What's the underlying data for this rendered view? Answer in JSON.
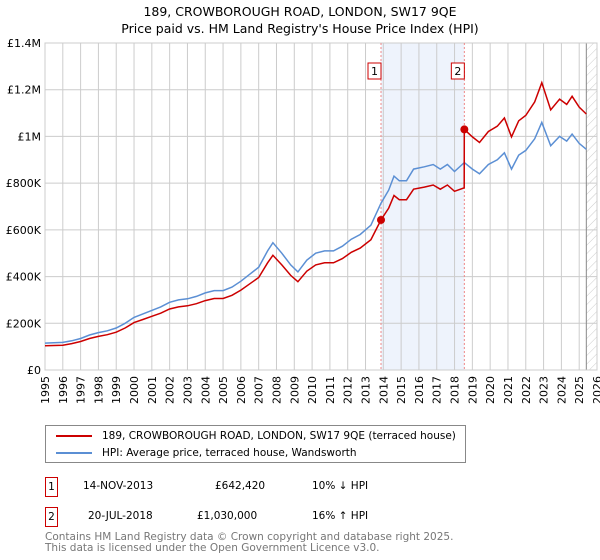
{
  "title": "189, CROWBOROUGH ROAD, LONDON, SW17 9QE",
  "subtitle": "Price paid vs. HM Land Registry's House Price Index (HPI)",
  "chart_data": {
    "type": "line",
    "xlim": [
      1995,
      2026
    ],
    "ylim": [
      0,
      1400000
    ],
    "x_ticks": [
      "1995",
      "1996",
      "1997",
      "1998",
      "1999",
      "2000",
      "2001",
      "2002",
      "2003",
      "2004",
      "2005",
      "2006",
      "2007",
      "2008",
      "2009",
      "2010",
      "2011",
      "2012",
      "2013",
      "2014",
      "2015",
      "2016",
      "2017",
      "2018",
      "2019",
      "2020",
      "2021",
      "2022",
      "2023",
      "2024",
      "2025",
      "2026"
    ],
    "y_ticks": [
      {
        "v": 0,
        "label": "£0"
      },
      {
        "v": 200000,
        "label": "£200K"
      },
      {
        "v": 400000,
        "label": "£400K"
      },
      {
        "v": 600000,
        "label": "£600K"
      },
      {
        "v": 800000,
        "label": "£800K"
      },
      {
        "v": 1000000,
        "label": "£1M"
      },
      {
        "v": 1200000,
        "label": "£1.2M"
      },
      {
        "v": 1400000,
        "label": "£1.4M"
      }
    ],
    "grid": true,
    "shaded_range": [
      2013.87,
      2018.55
    ],
    "forecast_from": 2025.4,
    "series": [
      {
        "name": "189, CROWBOROUGH ROAD, LONDON, SW17 9QE (terraced house)",
        "color": "#cc0000",
        "x": [
          1995,
          1995.5,
          1996,
          1996.5,
          1997,
          1997.5,
          1998,
          1998.5,
          1999,
          1999.5,
          2000,
          2000.5,
          2001,
          2001.5,
          2002,
          2002.5,
          2003,
          2003.5,
          2004,
          2004.5,
          2005,
          2005.5,
          2006,
          2006.5,
          2007,
          2007.5,
          2007.8,
          2008.3,
          2008.8,
          2009.2,
          2009.7,
          2010.2,
          2010.7,
          2011.2,
          2011.7,
          2012.2,
          2012.7,
          2013.3,
          2013.87,
          2014.3,
          2014.6,
          2014.9,
          2015.3,
          2015.7,
          2016.3,
          2016.8,
          2017.2,
          2017.6,
          2018.0,
          2018.54,
          2018.55,
          2019.0,
          2019.4,
          2019.9,
          2020.4,
          2020.8,
          2021.2,
          2021.6,
          2022.0,
          2022.5,
          2022.9,
          2023.4,
          2023.9,
          2024.3,
          2024.6,
          2025.0,
          2025.4
        ],
        "y": [
          104000,
          105000,
          106000,
          113000,
          122000,
          135000,
          144000,
          151000,
          162000,
          180000,
          203000,
          216000,
          230000,
          243000,
          261000,
          270000,
          275000,
          284000,
          297000,
          306000,
          306000,
          320000,
          342000,
          369000,
          396000,
          459000,
          491000,
          450000,
          405000,
          378000,
          423000,
          450000,
          459000,
          459000,
          477000,
          504000,
          522000,
          558000,
          642420,
          693000,
          747000,
          729000,
          729000,
          774000,
          783000,
          792000,
          774000,
          792000,
          765000,
          780000,
          1030000,
          998000,
          974000,
          1021000,
          1044000,
          1079000,
          998000,
          1067000,
          1090000,
          1148000,
          1230000,
          1114000,
          1160000,
          1137000,
          1172000,
          1125000,
          1096000
        ]
      },
      {
        "name": "HPI: Average price, terraced house, Wandsworth",
        "color": "#5b8fd4",
        "x": [
          1995,
          1995.5,
          1996,
          1996.5,
          1997,
          1997.5,
          1998,
          1998.5,
          1999,
          1999.5,
          2000,
          2000.5,
          2001,
          2001.5,
          2002,
          2002.5,
          2003,
          2003.5,
          2004,
          2004.5,
          2005,
          2005.5,
          2006,
          2006.5,
          2007,
          2007.5,
          2007.8,
          2008.3,
          2008.8,
          2009.2,
          2009.7,
          2010.2,
          2010.7,
          2011.2,
          2011.7,
          2012.2,
          2012.7,
          2013.3,
          2013.87,
          2014.3,
          2014.6,
          2014.9,
          2015.3,
          2015.7,
          2016.3,
          2016.8,
          2017.2,
          2017.6,
          2018.0,
          2018.55,
          2019.0,
          2019.4,
          2019.9,
          2020.4,
          2020.8,
          2021.2,
          2021.6,
          2022.0,
          2022.5,
          2022.9,
          2023.4,
          2023.9,
          2024.3,
          2024.6,
          2025.0,
          2025.4
        ],
        "y": [
          115000,
          117000,
          118000,
          125000,
          135000,
          150000,
          160000,
          168000,
          180000,
          200000,
          225000,
          240000,
          255000,
          270000,
          290000,
          300000,
          305000,
          315000,
          330000,
          340000,
          340000,
          355000,
          380000,
          410000,
          440000,
          510000,
          545000,
          500000,
          450000,
          420000,
          470000,
          500000,
          510000,
          510000,
          530000,
          560000,
          580000,
          620000,
          714000,
          770000,
          830000,
          810000,
          810000,
          860000,
          870000,
          880000,
          860000,
          880000,
          850000,
          888000,
          860000,
          840000,
          880000,
          900000,
          930000,
          860000,
          920000,
          940000,
          990000,
          1060000,
          960000,
          1000000,
          980000,
          1010000,
          970000,
          945000
        ]
      }
    ],
    "annotations": [
      {
        "label": "1",
        "x": 2013.87,
        "y": 642420
      },
      {
        "label": "2",
        "x": 2018.55,
        "y": 1030000
      }
    ]
  },
  "legend": {
    "red": "189, CROWBOROUGH ROAD, LONDON, SW17 9QE (terraced house)",
    "blue": "HPI: Average price, terraced house, Wandsworth"
  },
  "transactions": [
    {
      "num": "1",
      "date": "14-NOV-2013",
      "price": "£642,420",
      "hpi": "10% ↓ HPI"
    },
    {
      "num": "2",
      "date": "20-JUL-2018",
      "price": "£1,030,000",
      "hpi": "16% ↑ HPI"
    }
  ],
  "footer": [
    "Contains HM Land Registry data © Crown copyright and database right 2025.",
    "This data is licensed under the Open Government Licence v3.0."
  ]
}
